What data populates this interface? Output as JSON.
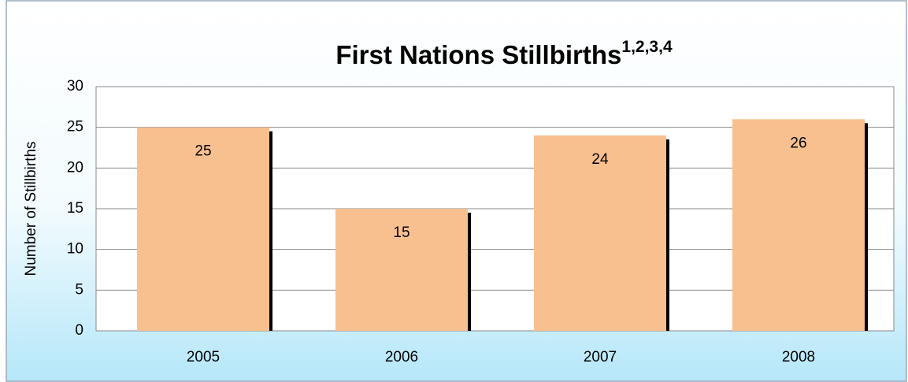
{
  "chart_data": {
    "type": "bar",
    "title": "First Nations Stillbirths",
    "title_superscript": "1,2,3,4",
    "ylabel": "Number of Stillbirths",
    "categories": [
      "2005",
      "2006",
      "2007",
      "2008"
    ],
    "values": [
      25,
      15,
      24,
      26
    ],
    "color": "#f9c08f",
    "ylim": [
      0,
      30
    ],
    "yticks": [
      0,
      5,
      10,
      15,
      20,
      25,
      30
    ],
    "grid": true,
    "data_labels": true
  }
}
